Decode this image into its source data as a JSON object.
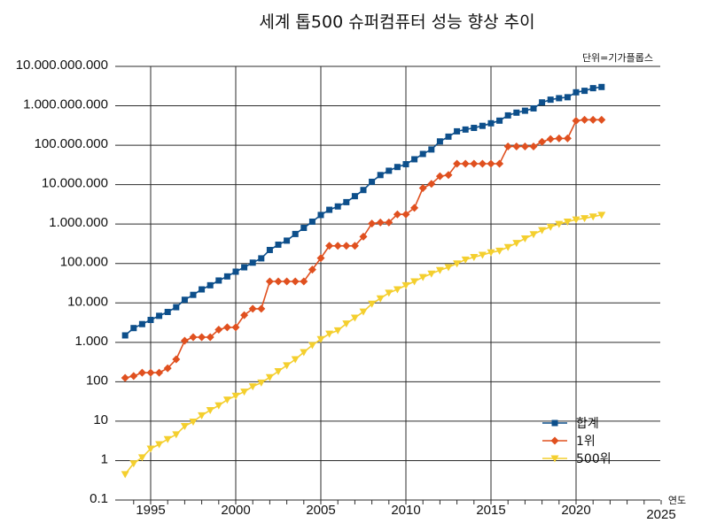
{
  "chart_data": {
    "type": "line",
    "title": "세계 톱500 슈퍼컴퓨터 성능 향상 추이",
    "unit_note": "단위=기가플롭스",
    "xlabel": "연도",
    "ylabel": "",
    "y_scale": "log",
    "ylim": [
      0.1,
      10000000000
    ],
    "xlim": [
      1993,
      2025
    ],
    "y_tick_values": [
      0.1,
      1,
      10,
      100,
      1000,
      10000,
      100000,
      1000000,
      10000000,
      100000000,
      1000000000,
      10000000000
    ],
    "y_tick_labels": [
      "0.1",
      "1",
      "10",
      "100",
      "1.000",
      "10.000",
      "100.000",
      "1.000.000",
      "10.000.000",
      "100.000.000",
      "1.000.000.000",
      "10.000.000.000"
    ],
    "x_tick_values": [
      1995,
      2000,
      2005,
      2010,
      2015,
      2020,
      2025
    ],
    "x_tick_labels": [
      "1995",
      "2000",
      "2005",
      "2010",
      "2015",
      "2020",
      "2025"
    ],
    "grid": true,
    "legend_position": "bottom-right",
    "series": [
      {
        "name": "합계",
        "color": "#0d4f8b",
        "marker": "square",
        "x": [
          1993.5,
          1994,
          1994.5,
          1995,
          1995.5,
          1996,
          1996.5,
          1997,
          1997.5,
          1998,
          1998.5,
          1999,
          1999.5,
          2000,
          2000.5,
          2001,
          2001.5,
          2002,
          2002.5,
          2003,
          2003.5,
          2004,
          2004.5,
          2005,
          2005.5,
          2006,
          2006.5,
          2007,
          2007.5,
          2008,
          2008.5,
          2009,
          2009.5,
          2010,
          2010.5,
          2011,
          2011.5,
          2012,
          2012.5,
          2013,
          2013.5,
          2014,
          2014.5,
          2015,
          2015.5,
          2016,
          2016.5,
          2017,
          2017.5,
          2018,
          2018.5,
          2019,
          2019.5,
          2020,
          2020.5,
          2021,
          2021.5
        ],
        "values": [
          1500,
          2300,
          2900,
          3700,
          4700,
          5900,
          7800,
          12000,
          16000,
          22000,
          28000,
          37000,
          47000,
          62000,
          80000,
          105000,
          135000,
          220000,
          300000,
          380000,
          560000,
          800000,
          1150000,
          1700000,
          2300000,
          2800000,
          3600000,
          5100000,
          7300000,
          11800000,
          17500000,
          22500000,
          28000000,
          33000000,
          44000000,
          60000000,
          78000000,
          125000000,
          165000000,
          225000000,
          250000000,
          275000000,
          310000000,
          360000000,
          420000000,
          570000000,
          670000000,
          750000000,
          860000000,
          1220000000,
          1430000000,
          1560000000,
          1650000000,
          2200000000,
          2400000000,
          2800000000,
          3000000000
        ]
      },
      {
        "name": "1위",
        "color": "#e0501f",
        "marker": "diamond",
        "x": [
          1993.5,
          1994,
          1994.5,
          1995,
          1995.5,
          1996,
          1996.5,
          1997,
          1997.5,
          1998,
          1998.5,
          1999,
          1999.5,
          2000,
          2000.5,
          2001,
          2001.5,
          2002,
          2002.5,
          2003,
          2003.5,
          2004,
          2004.5,
          2005,
          2005.5,
          2006,
          2006.5,
          2007,
          2007.5,
          2008,
          2008.5,
          2009,
          2009.5,
          2010,
          2010.5,
          2011,
          2011.5,
          2012,
          2012.5,
          2013,
          2013.5,
          2014,
          2014.5,
          2015,
          2015.5,
          2016,
          2016.5,
          2017,
          2017.5,
          2018,
          2018.5,
          2019,
          2019.5,
          2020,
          2020.5,
          2021,
          2021.5
        ],
        "values": [
          125,
          140,
          170,
          170,
          170,
          220,
          370,
          1100,
          1350,
          1350,
          1350,
          2100,
          2400,
          2400,
          4900,
          7100,
          7100,
          35000,
          35000,
          35000,
          35000,
          35000,
          70000,
          137000,
          280000,
          280000,
          280000,
          280000,
          480000,
          1030000,
          1100000,
          1100000,
          1760000,
          1760000,
          2570000,
          8200000,
          10500000,
          16300000,
          17600000,
          33900000,
          33900000,
          33900000,
          33900000,
          33900000,
          33900000,
          93000000,
          93000000,
          93000000,
          93000000,
          122000000,
          143500000,
          148600000,
          148600000,
          415500000,
          442000000,
          442000000,
          442000000
        ]
      },
      {
        "name": "500위",
        "color": "#f4cf2e",
        "marker": "triangle-down",
        "x": [
          1993.5,
          1994,
          1994.5,
          1995,
          1995.5,
          1996,
          1996.5,
          1997,
          1997.5,
          1998,
          1998.5,
          1999,
          1999.5,
          2000,
          2000.5,
          2001,
          2001.5,
          2002,
          2002.5,
          2003,
          2003.5,
          2004,
          2004.5,
          2005,
          2005.5,
          2006,
          2006.5,
          2007,
          2007.5,
          2008,
          2008.5,
          2009,
          2009.5,
          2010,
          2010.5,
          2011,
          2011.5,
          2012,
          2012.5,
          2013,
          2013.5,
          2014,
          2014.5,
          2015,
          2015.5,
          2016,
          2016.5,
          2017,
          2017.5,
          2018,
          2018.5,
          2019,
          2019.5,
          2020,
          2020.5,
          2021,
          2021.5
        ],
        "values": [
          0.45,
          0.85,
          1.2,
          2,
          2.6,
          3.5,
          4.6,
          7.5,
          9.7,
          14,
          19,
          25,
          35,
          44,
          56,
          76,
          95,
          130,
          185,
          260,
          370,
          560,
          850,
          1200,
          1650,
          2000,
          3000,
          4200,
          6000,
          9500,
          13000,
          18000,
          22000,
          28000,
          35000,
          45000,
          55000,
          68000,
          80000,
          100000,
          125000,
          145000,
          165000,
          190000,
          210000,
          260000,
          330000,
          430000,
          550000,
          700000,
          850000,
          1000000,
          1150000,
          1300000,
          1400000,
          1550000,
          1700000
        ]
      }
    ]
  }
}
